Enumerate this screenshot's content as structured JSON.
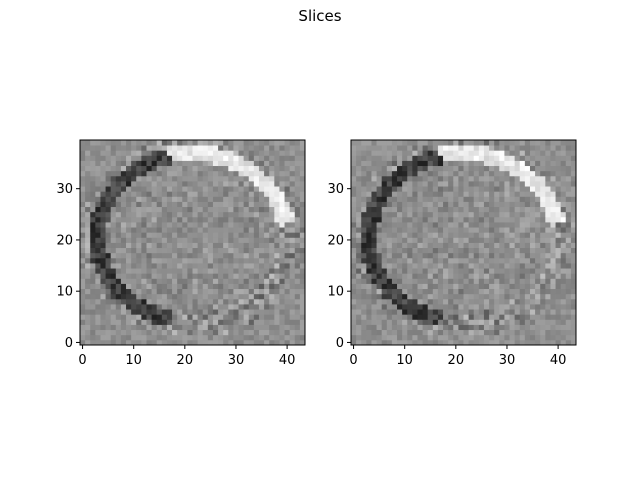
{
  "figure": {
    "title": "Slices"
  },
  "chart_data": [
    {
      "type": "heatmap",
      "colormap": "gray",
      "x_ticks": [
        0,
        10,
        20,
        30,
        40
      ],
      "y_ticks": [
        0,
        10,
        20,
        30
      ],
      "xlim": [
        -0.5,
        43.5
      ],
      "ylim": [
        -0.5,
        39.5
      ],
      "shape": [
        40,
        44
      ],
      "description_of_content": "grayscale brain slice difference image; dark rim on left edge, bright rim on top-right edge",
      "ellipse_center": [
        21.5,
        20.5
      ],
      "ellipse_radii": [
        18.5,
        16.5
      ],
      "rim_bright_side": "top-right",
      "rim_dark_side": "left"
    },
    {
      "type": "heatmap",
      "colormap": "gray",
      "x_ticks": [
        0,
        10,
        20,
        30,
        40
      ],
      "y_ticks": [
        0,
        10,
        20,
        30
      ],
      "xlim": [
        -0.5,
        43.5
      ],
      "ylim": [
        -0.5,
        39.5
      ],
      "shape": [
        40,
        44
      ],
      "description_of_content": "grayscale brain slice difference image; dark rim on left edge, bright rim on top-right edge",
      "ellipse_center": [
        21.5,
        20.5
      ],
      "ellipse_radii": [
        18.5,
        16.5
      ],
      "rim_bright_side": "top-right",
      "rim_dark_side": "left"
    }
  ]
}
